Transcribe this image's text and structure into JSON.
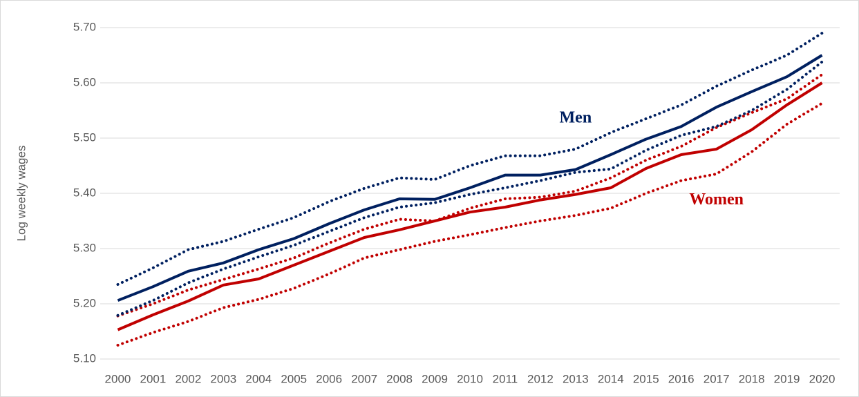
{
  "chart_data": {
    "type": "line",
    "y_label": "Log weekly wages",
    "categories": [
      "2000",
      "2001",
      "2002",
      "2003",
      "2004",
      "2005",
      "2006",
      "2007",
      "2008",
      "2009",
      "2010",
      "2011",
      "2012",
      "2013",
      "2014",
      "2015",
      "2016",
      "2017",
      "2018",
      "2019",
      "2020"
    ],
    "ylim": [
      5.1,
      5.7
    ],
    "yticks": [
      {
        "value": 5.1,
        "label": "5.10"
      },
      {
        "value": 5.2,
        "label": "5.20"
      },
      {
        "value": 5.3,
        "label": "5.30"
      },
      {
        "value": 5.4,
        "label": "5.40"
      },
      {
        "value": 5.5,
        "label": "5.50"
      },
      {
        "value": 5.6,
        "label": "5.60"
      },
      {
        "value": 5.7,
        "label": "5.70"
      }
    ],
    "grid": true,
    "series": [
      {
        "color": "#c00000",
        "style": "dotted",
        "values": [
          5.125,
          5.148,
          5.168,
          5.193,
          5.208,
          5.228,
          5.254,
          5.283,
          5.298,
          5.313,
          5.325,
          5.338,
          5.35,
          5.36,
          5.373,
          5.4,
          5.423,
          5.435,
          5.475,
          5.525,
          5.563
        ]
      },
      {
        "color": "#c00000",
        "style": "dotted",
        "values": [
          5.178,
          5.2,
          5.225,
          5.244,
          5.263,
          5.283,
          5.31,
          5.335,
          5.353,
          5.35,
          5.373,
          5.39,
          5.393,
          5.404,
          5.428,
          5.46,
          5.485,
          5.519,
          5.546,
          5.571,
          5.615
        ]
      },
      {
        "color": "#c00000",
        "style": "solid",
        "values": [
          5.153,
          5.18,
          5.205,
          5.234,
          5.245,
          5.27,
          5.295,
          5.32,
          5.334,
          5.35,
          5.366,
          5.375,
          5.388,
          5.398,
          5.41,
          5.445,
          5.47,
          5.48,
          5.515,
          5.56,
          5.6
        ]
      },
      {
        "color": "#002060",
        "style": "dotted",
        "values": [
          5.179,
          5.206,
          5.238,
          5.263,
          5.285,
          5.306,
          5.331,
          5.356,
          5.375,
          5.383,
          5.398,
          5.41,
          5.423,
          5.438,
          5.444,
          5.478,
          5.505,
          5.521,
          5.55,
          5.588,
          5.638
        ]
      },
      {
        "color": "#002060",
        "style": "dotted",
        "values": [
          5.235,
          5.265,
          5.298,
          5.313,
          5.335,
          5.356,
          5.385,
          5.409,
          5.428,
          5.425,
          5.45,
          5.468,
          5.468,
          5.48,
          5.51,
          5.535,
          5.56,
          5.594,
          5.623,
          5.65,
          5.69
        ]
      },
      {
        "color": "#002060",
        "style": "solid",
        "values": [
          5.206,
          5.231,
          5.259,
          5.274,
          5.298,
          5.318,
          5.345,
          5.37,
          5.39,
          5.389,
          5.41,
          5.433,
          5.433,
          5.443,
          5.47,
          5.498,
          5.521,
          5.556,
          5.584,
          5.611,
          5.65
        ]
      }
    ],
    "annotations": [
      {
        "text": "Men",
        "color": "#002060",
        "x": "2013",
        "y": 5.535
      },
      {
        "text": "Women",
        "color": "#c00000",
        "x": "2017",
        "y": 5.387
      }
    ]
  }
}
